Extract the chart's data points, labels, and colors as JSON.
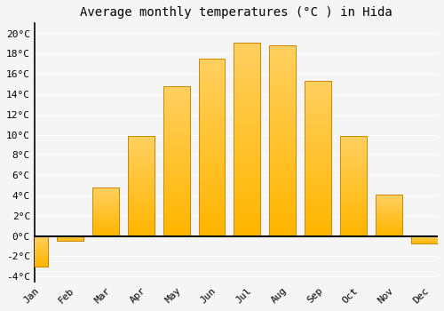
{
  "title": "Average monthly temperatures (°C ) in Hida",
  "months": [
    "Jan",
    "Feb",
    "Mar",
    "Apr",
    "May",
    "Jun",
    "Jul",
    "Aug",
    "Sep",
    "Oct",
    "Nov",
    "Dec"
  ],
  "temperatures": [
    -3.0,
    -0.5,
    4.8,
    9.9,
    14.8,
    17.5,
    19.1,
    18.8,
    15.3,
    9.9,
    4.1,
    -0.7
  ],
  "bar_color_top": "#FFB600",
  "bar_color_bottom": "#FFD060",
  "bar_edge_color": "#CC8800",
  "background_color": "#F5F5F5",
  "grid_color": "#FFFFFF",
  "zero_line_color": "#000000",
  "left_spine_color": "#000000",
  "ylim": [
    -4.5,
    21.0
  ],
  "yticks": [
    -4,
    -2,
    0,
    2,
    4,
    6,
    8,
    10,
    12,
    14,
    16,
    18,
    20
  ],
  "ytick_labels": [
    "-4°C",
    "-2°C",
    "0°C",
    "2°C",
    "4°C",
    "6°C",
    "8°C",
    "10°C",
    "12°C",
    "14°C",
    "16°C",
    "18°C",
    "20°C"
  ],
  "title_fontsize": 10,
  "tick_fontsize": 8,
  "font_family": "monospace",
  "figsize": [
    5.0,
    3.5
  ],
  "dpi": 100
}
